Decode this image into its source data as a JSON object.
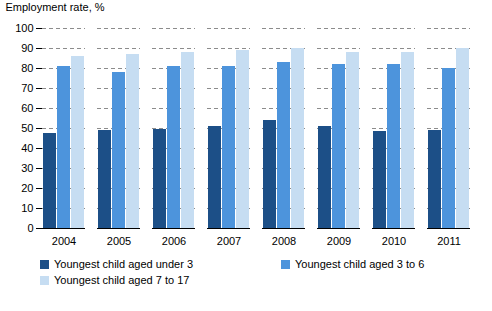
{
  "chart_data": {
    "type": "bar",
    "y_label": "Employment rate, %",
    "categories": [
      "2004",
      "2005",
      "2006",
      "2007",
      "2008",
      "2009",
      "2010",
      "2011"
    ],
    "series": [
      {
        "name": "Youngest child aged under 3",
        "color": "#1c4f87",
        "values": [
          47.5,
          49,
          49.5,
          51,
          54,
          51,
          48.5,
          49
        ]
      },
      {
        "name": "Youngest child aged 3 to 6",
        "color": "#4d94dc",
        "values": [
          81,
          78,
          81,
          81,
          83,
          82,
          82,
          80
        ]
      },
      {
        "name": "Youngest child aged 7 to 17",
        "color": "#c6ddf2",
        "values": [
          86,
          87,
          88,
          89,
          90,
          88,
          88,
          90
        ]
      }
    ],
    "ylim": [
      0,
      100
    ],
    "yticks": [
      0,
      10,
      20,
      30,
      40,
      50,
      60,
      70,
      80,
      90,
      100
    ],
    "grid": true,
    "legend": "bottom"
  }
}
